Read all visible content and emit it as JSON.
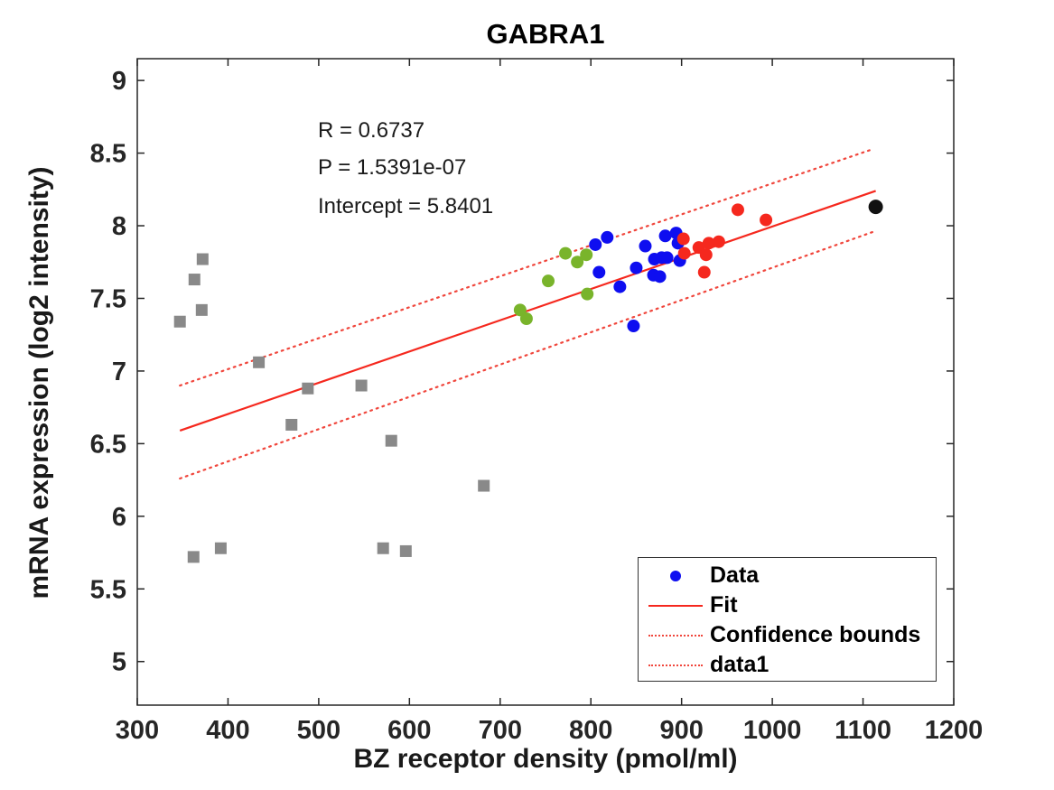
{
  "title": "GABRA1",
  "annotations": {
    "r": "R = 0.6737",
    "p": "P = 1.5391e-07",
    "intercept": "Intercept = 5.8401"
  },
  "axes": {
    "x": {
      "label": "BZ receptor density (pmol/ml)",
      "tick_labels": [
        "300",
        "400",
        "500",
        "600",
        "700",
        "800",
        "900",
        "1000",
        "1100",
        "1200"
      ],
      "tick_values": [
        300,
        400,
        500,
        600,
        700,
        800,
        900,
        1000,
        1100,
        1200
      ]
    },
    "y": {
      "label": "mRNA expression (log2 intensity)",
      "tick_labels": [
        "5",
        "5.5",
        "6",
        "6.5",
        "7",
        "7.5",
        "8",
        "8.5",
        "9"
      ],
      "tick_values": [
        5,
        5.5,
        6,
        6.5,
        7,
        7.5,
        8,
        8.5,
        9
      ]
    }
  },
  "legend": {
    "items": [
      {
        "label": "Data",
        "marker": "dot",
        "color": "#0E0EF0"
      },
      {
        "label": "Fit",
        "marker": "line",
        "color": "#F5281E"
      },
      {
        "label": "Confidence bounds",
        "marker": "dotted",
        "color": "#F0463C"
      },
      {
        "label": "data1",
        "marker": "dotted",
        "color": "#F0463C"
      }
    ]
  },
  "colors": {
    "blue": "#0E0EF0",
    "red": "#F5281E",
    "green": "#79B42B",
    "gray": "#898989",
    "black": "#111111",
    "fit_line": "#F5281E",
    "confidence": "#F0463C",
    "axis": "#262626"
  },
  "chart_data": {
    "type": "scatter",
    "title": "GABRA1",
    "xlabel": "BZ receptor density (pmol/ml)",
    "ylabel": "mRNA expression (log2 intensity)",
    "xlim": [
      300,
      1200
    ],
    "ylim": [
      4.7,
      9.15
    ],
    "grid": false,
    "legend_position": "lower right",
    "stats": {
      "R": 0.6737,
      "P": "1.5391e-07",
      "Intercept": 5.8401
    },
    "series": [
      {
        "name": "gray-squares",
        "marker": "square",
        "color": "#898989",
        "size": 13,
        "points": [
          [
            372,
            7.77
          ],
          [
            363,
            7.63
          ],
          [
            371,
            7.42
          ],
          [
            347,
            7.34
          ],
          [
            434,
            7.06
          ],
          [
            488,
            6.88
          ],
          [
            547,
            6.9
          ],
          [
            470,
            6.63
          ],
          [
            580,
            6.52
          ],
          [
            392,
            5.78
          ],
          [
            362,
            5.72
          ],
          [
            571,
            5.78
          ],
          [
            596,
            5.76
          ],
          [
            682,
            6.21
          ]
        ]
      },
      {
        "name": "green-dots",
        "marker": "circle",
        "color": "#79B42B",
        "size": 14,
        "points": [
          [
            772,
            7.81
          ],
          [
            785,
            7.75
          ],
          [
            795,
            7.8
          ],
          [
            753,
            7.62
          ],
          [
            796,
            7.53
          ],
          [
            722,
            7.42
          ],
          [
            729,
            7.36
          ]
        ]
      },
      {
        "name": "blue-dots",
        "marker": "circle",
        "color": "#0E0EF0",
        "size": 14,
        "points": [
          [
            805,
            7.87
          ],
          [
            818,
            7.92
          ],
          [
            809,
            7.68
          ],
          [
            832,
            7.58
          ],
          [
            850,
            7.71
          ],
          [
            860,
            7.86
          ],
          [
            870,
            7.77
          ],
          [
            878,
            7.78
          ],
          [
            884,
            7.78
          ],
          [
            898,
            7.76
          ],
          [
            882,
            7.93
          ],
          [
            894,
            7.95
          ],
          [
            896,
            7.88
          ],
          [
            869,
            7.66
          ],
          [
            876,
            7.65
          ],
          [
            847,
            7.31
          ]
        ]
      },
      {
        "name": "red-dots",
        "marker": "circle",
        "color": "#F5281E",
        "size": 14,
        "points": [
          [
            902,
            7.91
          ],
          [
            903,
            7.81
          ],
          [
            919,
            7.85
          ],
          [
            930,
            7.88
          ],
          [
            941,
            7.89
          ],
          [
            927,
            7.8
          ],
          [
            925,
            7.68
          ],
          [
            962,
            8.11
          ],
          [
            993,
            8.04
          ]
        ]
      },
      {
        "name": "black-dot",
        "marker": "circle",
        "color": "#111111",
        "size": 16,
        "points": [
          [
            1114,
            8.13
          ]
        ]
      }
    ],
    "fit_line": {
      "x1": 347,
      "y1": 6.59,
      "x2": 1114,
      "y2": 8.24,
      "style": "solid"
    },
    "confidence_bounds": [
      {
        "name": "upper",
        "x1": 347,
        "y1": 6.9,
        "x2": 1112,
        "y2": 8.53,
        "style": "dotted"
      },
      {
        "name": "lower",
        "x1": 347,
        "y1": 6.26,
        "x2": 1112,
        "y2": 7.96,
        "style": "dotted"
      }
    ]
  }
}
